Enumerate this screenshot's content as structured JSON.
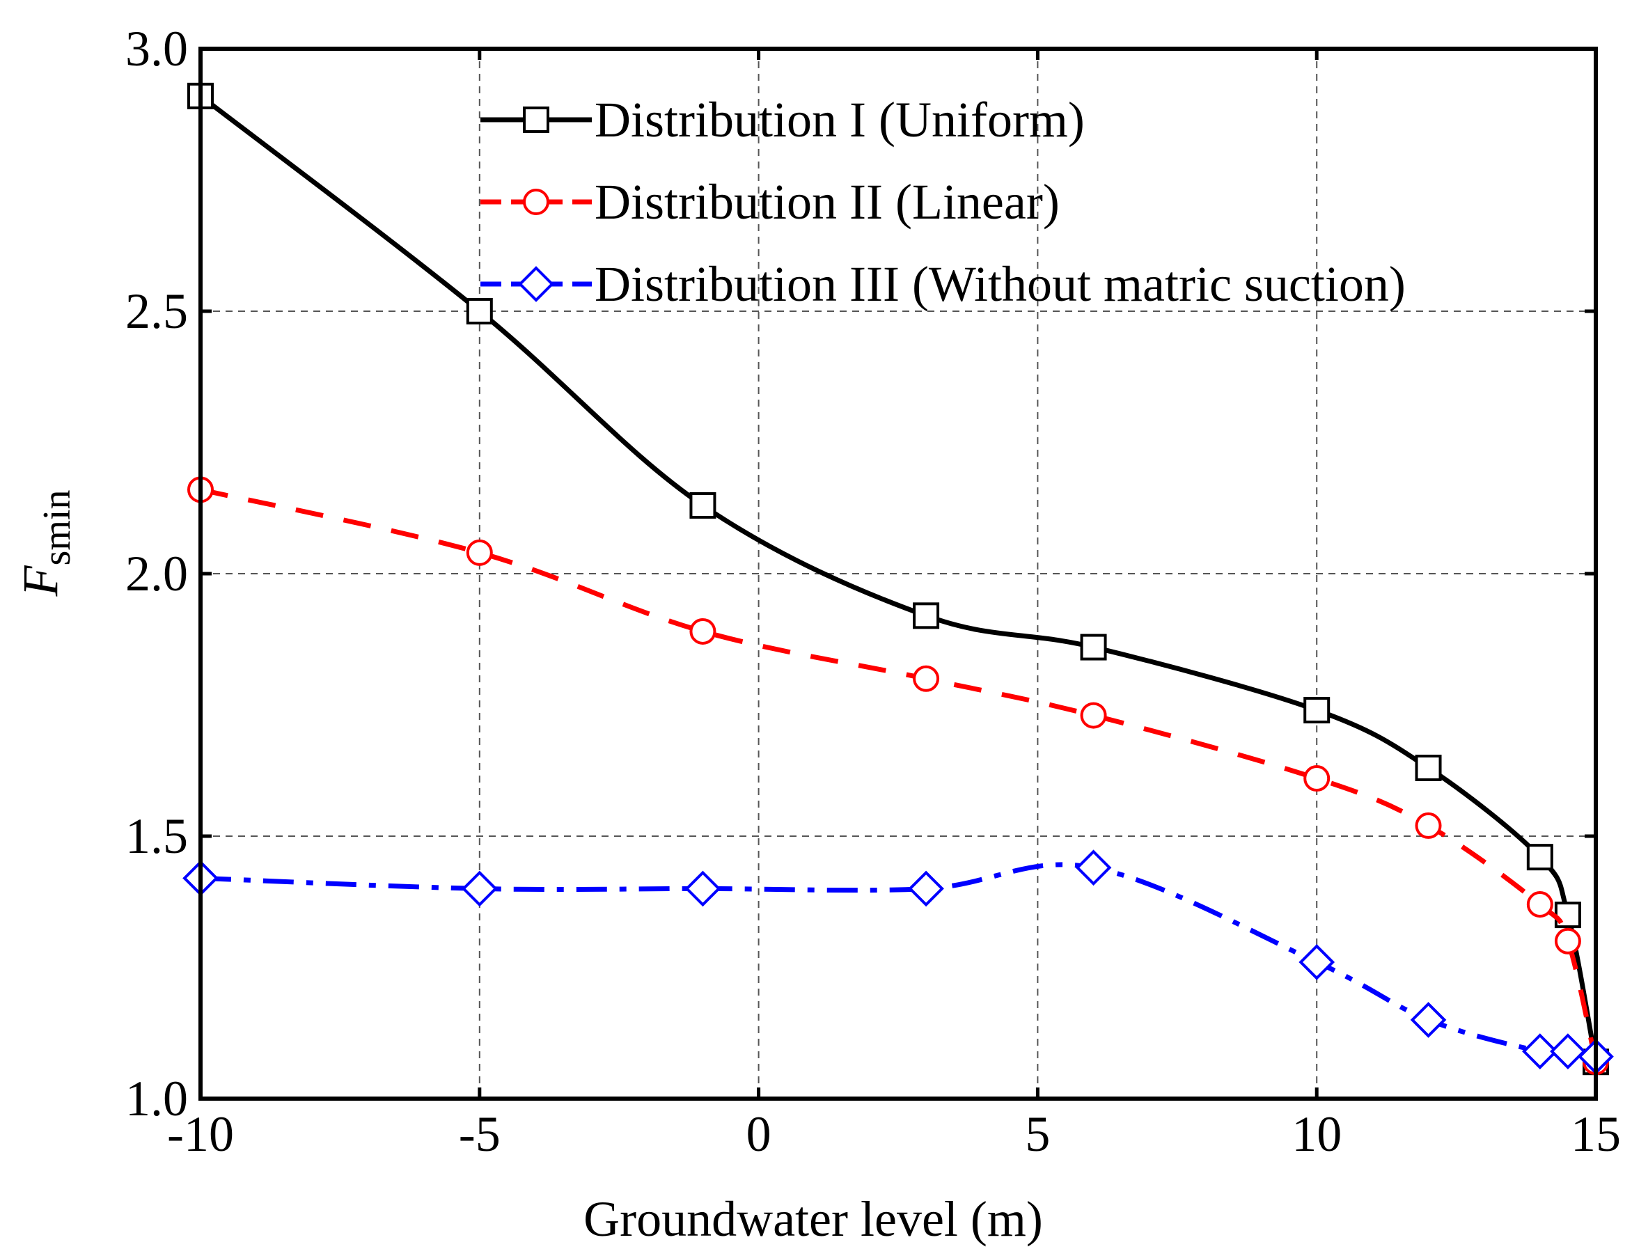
{
  "chart_data": {
    "type": "line",
    "title": "",
    "xlabel": "Groundwater level  (m)",
    "ylabel": {
      "main": "F",
      "subscript": "smin"
    },
    "xlim": [
      -10,
      15
    ],
    "ylim": [
      1.0,
      3.0
    ],
    "xticks": [
      -10,
      -5,
      0,
      5,
      10,
      15
    ],
    "xtick_labels": [
      "-10",
      "-5",
      "0",
      "5",
      "10",
      "15"
    ],
    "yticks": [
      1.0,
      1.5,
      2.0,
      2.5,
      3.0
    ],
    "ytick_labels": [
      "1.0",
      "1.5",
      "2.0",
      "2.5",
      "3.0"
    ],
    "grid": true,
    "legend_position": "top-right",
    "series": [
      {
        "name": "Distribution I (Uniform)",
        "color": "#000000",
        "line_style": "solid",
        "marker": "square",
        "x": [
          -10,
          -5,
          -1,
          3,
          6,
          10,
          12,
          14,
          14.5,
          15
        ],
        "y": [
          2.91,
          2.5,
          2.13,
          1.92,
          1.86,
          1.74,
          1.63,
          1.46,
          1.35,
          1.07
        ]
      },
      {
        "name": "Distribution II (Linear)",
        "color": "#ff0000",
        "line_style": "dashed",
        "marker": "circle",
        "x": [
          -10,
          -5,
          -1,
          3,
          6,
          10,
          12,
          14,
          14.5,
          15
        ],
        "y": [
          2.16,
          2.04,
          1.89,
          1.8,
          1.73,
          1.61,
          1.52,
          1.37,
          1.3,
          1.07
        ]
      },
      {
        "name": "Distribution III (Without matric suction)",
        "color": "#0000ff",
        "line_style": "dashdot",
        "marker": "diamond",
        "x": [
          -10,
          -5,
          -1,
          3,
          6,
          10,
          12,
          14,
          14.5,
          15
        ],
        "y": [
          1.42,
          1.4,
          1.4,
          1.4,
          1.44,
          1.26,
          1.15,
          1.09,
          1.09,
          1.08
        ]
      }
    ]
  }
}
